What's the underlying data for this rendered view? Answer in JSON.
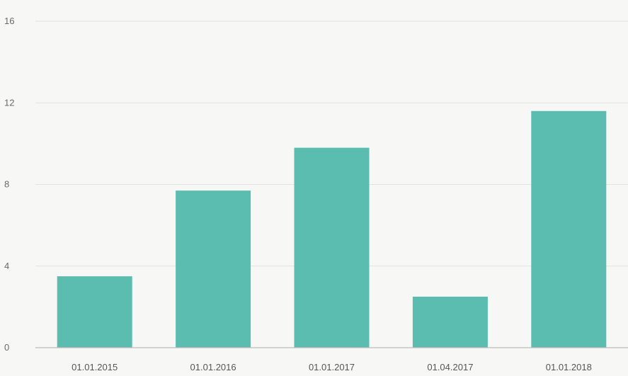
{
  "chart_data": {
    "type": "bar",
    "title": "",
    "xlabel": "",
    "ylabel": "",
    "categories": [
      "01.01.2015",
      "01.01.2016",
      "01.01.2017",
      "01.04.2017",
      "01.01.2018"
    ],
    "values": [
      3.5,
      7.7,
      9.8,
      2.5,
      11.6
    ],
    "ylim": [
      0,
      16
    ],
    "yticks": [
      0,
      4,
      8,
      12,
      16
    ],
    "grid": true,
    "legend": "none",
    "colors": {
      "bar": "#5bbcb0",
      "grid": "#e2e2de",
      "axis": "#bdbdb8",
      "text": "#6a6a6a"
    }
  }
}
